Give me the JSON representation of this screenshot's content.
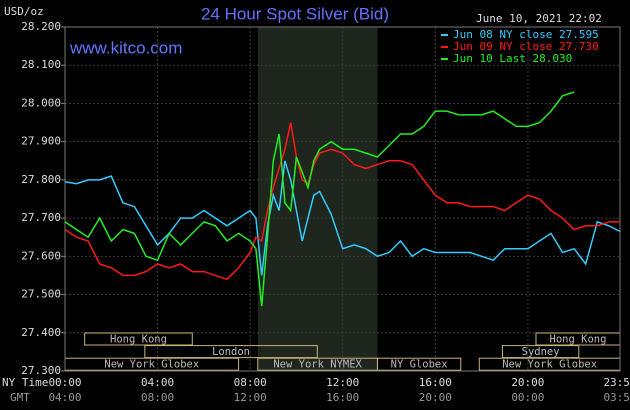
{
  "chart_data": {
    "type": "line",
    "title": "24 Hour Spot Silver (Bid)",
    "y_label": "USD/oz",
    "watermark": "www.kitco.com",
    "timestamp": "June 10, 2021 22:02",
    "x_row_labels": [
      "NY Time",
      "GMT"
    ],
    "xlim": [
      0,
      23.98
    ],
    "xticks": [
      {
        "value": 0,
        "label": "00:00"
      },
      {
        "value": 4,
        "label": "04:00"
      },
      {
        "value": 8,
        "label": "08:00"
      },
      {
        "value": 12,
        "label": "12:00"
      },
      {
        "value": 16,
        "label": "16:00"
      },
      {
        "value": 20,
        "label": "20:00"
      },
      {
        "value": 23.98,
        "label": "23:59"
      }
    ],
    "xtick_gmt_labels": [
      "04:00",
      "08:00",
      "12:00",
      "16:00",
      "20:00",
      "00:00",
      "03:59"
    ],
    "ylim": [
      27.3,
      28.2
    ],
    "yticks": [
      {
        "value": 27.3,
        "label": "27.300"
      },
      {
        "value": 27.4,
        "label": "27.400"
      },
      {
        "value": 27.5,
        "label": "27.500"
      },
      {
        "value": 27.6,
        "label": "27.600"
      },
      {
        "value": 27.7,
        "label": "27.700"
      },
      {
        "value": 27.8,
        "label": "27.800"
      },
      {
        "value": 27.9,
        "label": "27.900"
      },
      {
        "value": 28.0,
        "label": "28.000"
      },
      {
        "value": 28.1,
        "label": "28.100"
      },
      {
        "value": 28.2,
        "label": "28.200"
      }
    ],
    "grid": true,
    "highlight_range": [
      8.33,
      13.5
    ],
    "session_rows": [
      [
        {
          "label": "Hong Kong",
          "start": 0.85,
          "end": 5.5
        },
        {
          "label": "Hong Kong",
          "start": 20.35,
          "end": 23.98
        }
      ],
      [
        {
          "label": "London",
          "start": 3.45,
          "end": 10.9
        },
        {
          "label": "Sydney",
          "start": 18.9,
          "end": 22.2
        }
      ],
      [
        {
          "label": "New York Globex",
          "start": 0,
          "end": 7.5
        },
        {
          "label": "New York NYMEX",
          "start": 8.33,
          "end": 13.5
        },
        {
          "label": "NY Globex",
          "start": 13.5,
          "end": 17.1
        },
        {
          "label": "New York Globex",
          "start": 17.9,
          "end": 23.98
        }
      ]
    ],
    "x": [
      0,
      0.5,
      1,
      1.5,
      2,
      2.5,
      3,
      3.5,
      4,
      4.5,
      5,
      5.5,
      6,
      6.5,
      7,
      7.5,
      8,
      8.25,
      8.5,
      8.75,
      9,
      9.25,
      9.5,
      9.75,
      10,
      10.25,
      10.5,
      10.75,
      11,
      11.5,
      12,
      12.5,
      13,
      13.5,
      14,
      14.5,
      15,
      15.5,
      16,
      16.5,
      17,
      17.5,
      18,
      18.5,
      19,
      19.5,
      20,
      20.5,
      21,
      21.5,
      22,
      22.5,
      23,
      23.5,
      23.98
    ],
    "series": [
      {
        "name": "Jun 08 NY close 27.595",
        "color": "#33ccff",
        "values": [
          27.795,
          27.79,
          27.8,
          27.8,
          27.81,
          27.74,
          27.73,
          27.68,
          27.63,
          27.66,
          27.7,
          27.7,
          27.72,
          27.7,
          27.68,
          27.7,
          27.72,
          27.7,
          27.55,
          27.68,
          27.76,
          27.72,
          27.85,
          27.8,
          27.72,
          27.64,
          27.7,
          27.76,
          27.77,
          27.71,
          27.62,
          27.63,
          27.62,
          27.6,
          27.61,
          27.64,
          27.6,
          27.62,
          27.61,
          27.61,
          27.61,
          27.61,
          27.6,
          27.59,
          27.62,
          27.62,
          27.62,
          27.64,
          27.66,
          27.61,
          27.62,
          27.58,
          27.69,
          27.68,
          27.665
        ]
      },
      {
        "name": "Jun 09 NY close 27.730",
        "color": "#ff1a1a",
        "values": [
          27.67,
          27.65,
          27.64,
          27.58,
          27.57,
          27.55,
          27.55,
          27.56,
          27.58,
          27.57,
          27.58,
          27.56,
          27.56,
          27.55,
          27.54,
          27.57,
          27.61,
          27.65,
          27.64,
          27.72,
          27.78,
          27.83,
          27.88,
          27.95,
          27.86,
          27.8,
          27.79,
          27.84,
          27.87,
          27.88,
          27.87,
          27.84,
          27.83,
          27.84,
          27.85,
          27.85,
          27.84,
          27.8,
          27.76,
          27.74,
          27.74,
          27.73,
          27.73,
          27.73,
          27.72,
          27.74,
          27.76,
          27.75,
          27.72,
          27.7,
          27.67,
          27.68,
          27.68,
          27.69,
          27.69
        ]
      },
      {
        "name": "Jun 10 Last 28.030",
        "color": "#22ee22",
        "values": [
          27.69,
          27.67,
          27.65,
          27.7,
          27.64,
          27.67,
          27.66,
          27.6,
          27.59,
          27.66,
          27.63,
          27.66,
          27.69,
          27.68,
          27.64,
          27.66,
          27.64,
          27.62,
          27.47,
          27.65,
          27.85,
          27.92,
          27.74,
          27.72,
          27.86,
          27.82,
          27.78,
          27.85,
          27.88,
          27.9,
          27.88,
          27.88,
          27.87,
          27.86,
          27.89,
          27.92,
          27.92,
          27.94,
          27.98,
          27.98,
          27.97,
          27.97,
          27.97,
          27.98,
          27.96,
          27.94,
          27.94,
          27.95,
          27.98,
          28.02,
          28.03,
          null,
          null,
          null,
          null
        ]
      }
    ]
  }
}
